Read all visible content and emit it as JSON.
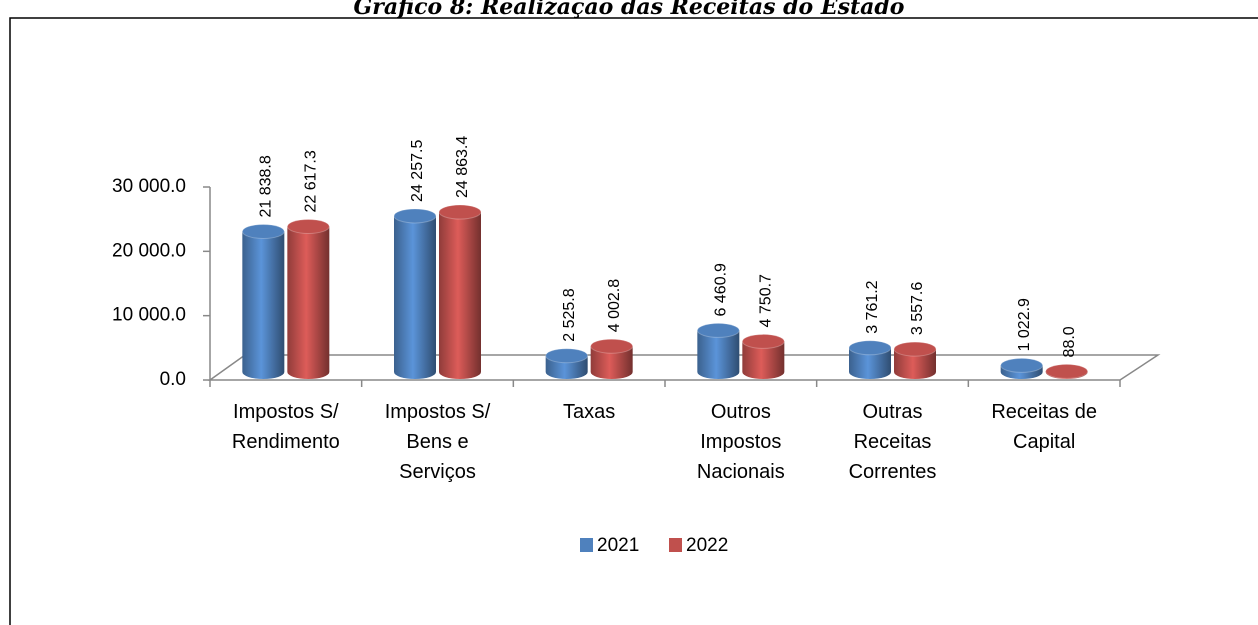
{
  "chart_data": {
    "type": "bar3d",
    "title": "Gráfico 8: Realização das Receitas do Estado",
    "categories": [
      "Impostos S/ Rendimento",
      "Impostos S/ Bens e Serviços",
      "Taxas",
      "Outros Impostos Nacionais",
      "Outras Receitas Correntes",
      "Receitas de Capital"
    ],
    "series": [
      {
        "name": "2021",
        "color": "#4f81bd",
        "values": [
          21838.8,
          24257.5,
          2525.8,
          6460.9,
          3761.2,
          1022.9
        ],
        "value_labels": [
          "21 838.8",
          "24 257.5",
          "2 525.8",
          "6 460.9",
          "3 761.2",
          "1 022.9"
        ]
      },
      {
        "name": "2022",
        "color": "#c0504d",
        "values": [
          22617.3,
          24863.4,
          4002.8,
          4750.7,
          3557.6,
          88.0
        ],
        "value_labels": [
          "22 617.3",
          "24 863.4",
          "4 002.8",
          "4 750.7",
          "3 557.6",
          "88.0"
        ]
      }
    ],
    "ylim": [
      0,
      30000
    ],
    "yticks": [
      {
        "value": 0,
        "label": "0.0"
      },
      {
        "value": 10000,
        "label": "10 000.0"
      },
      {
        "value": 20000,
        "label": "20 000.0"
      },
      {
        "value": 30000,
        "label": "30 000.0"
      }
    ],
    "legend": "bottom"
  }
}
